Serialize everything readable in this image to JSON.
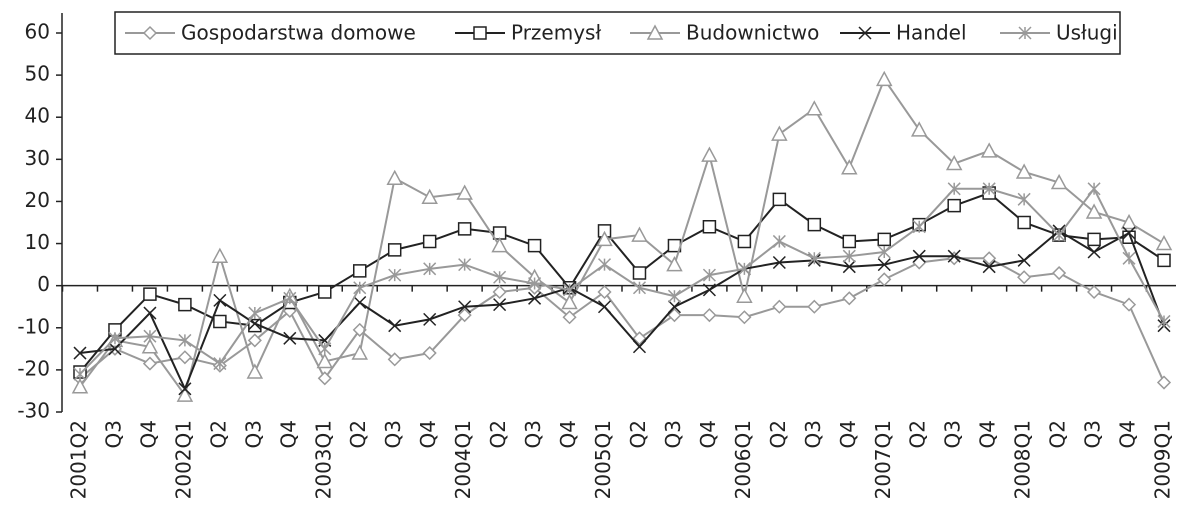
{
  "chart_data": {
    "type": "line",
    "categories": [
      "2001Q2",
      "Q3",
      "Q4",
      "2002Q1",
      "Q2",
      "Q3",
      "Q4",
      "2003Q1",
      "Q2",
      "Q3",
      "Q4",
      "2004Q1",
      "Q2",
      "Q3",
      "Q4",
      "2005Q1",
      "Q2",
      "Q3",
      "Q4",
      "2006Q1",
      "Q2",
      "Q3",
      "Q4",
      "2007Q1",
      "Q2",
      "Q3",
      "Q4",
      "2008Q1",
      "Q2",
      "Q3",
      "Q4",
      "2009Q1"
    ],
    "series": [
      {
        "name": "Gospodarstwa domowe",
        "color": "#999999",
        "marker": "diamond",
        "values": [
          -22,
          -15,
          -18.5,
          -17,
          -19,
          -13,
          -6,
          -22,
          -10.5,
          -17.5,
          -16,
          -7,
          -1.5,
          -0.5,
          -7.5,
          -1.5,
          -12.5,
          -7,
          -7,
          -7.5,
          -5,
          -5,
          -3,
          1.5,
          5.5,
          6.5,
          6.5,
          2,
          3,
          -1.5,
          -4.5,
          -23
        ]
      },
      {
        "name": "Przemysł",
        "color": "#222222",
        "marker": "square",
        "values": [
          -20.5,
          -10.5,
          -2,
          -4.5,
          -8.5,
          -9.5,
          -4,
          -1.5,
          3.5,
          8.5,
          10.5,
          13.5,
          12.5,
          9.5,
          -0.5,
          13,
          3,
          9.5,
          14,
          10.5,
          20.5,
          14.5,
          10.5,
          11,
          14.5,
          19,
          22,
          15,
          12,
          11,
          11.5,
          6
        ]
      },
      {
        "name": "Budownictwo",
        "color": "#999999",
        "marker": "triangle",
        "values": [
          -24,
          -13,
          -14.5,
          -26,
          7,
          -20.5,
          -2.5,
          -18,
          -16,
          25.5,
          21,
          22,
          9.5,
          2,
          -4,
          11,
          12,
          5,
          31,
          -2.5,
          36,
          42,
          28,
          49,
          37,
          29,
          32,
          27,
          24.5,
          17.5,
          15,
          10
        ]
      },
      {
        "name": "Handel",
        "color": "#222222",
        "marker": "x",
        "values": [
          -16,
          -15,
          -6.5,
          -24.5,
          -3.5,
          -9,
          -12.5,
          -13,
          -4,
          -9.5,
          -8,
          -5,
          -4.5,
          -3,
          -0.5,
          -5,
          -14.5,
          -5,
          -1,
          4,
          5.5,
          6,
          4.5,
          5,
          7,
          7,
          4.5,
          6,
          13,
          8,
          12.5,
          -9.5
        ]
      },
      {
        "name": "Usługi",
        "color": "#999999",
        "marker": "star",
        "values": [
          -21,
          -12.5,
          -12,
          -13,
          -18.5,
          -6.5,
          -3,
          -15,
          -0.5,
          2.5,
          4,
          5,
          2,
          0.5,
          -1,
          5,
          -0.5,
          -2.5,
          2.5,
          4,
          10.5,
          6.5,
          7,
          8,
          14,
          23,
          23,
          20.5,
          12,
          23,
          6.5,
          -8.5
        ]
      }
    ],
    "ylim": [
      -30,
      60
    ],
    "yticks": [
      -30,
      -20,
      -10,
      0,
      10,
      20,
      30,
      40,
      50,
      60
    ],
    "legend": "top"
  }
}
